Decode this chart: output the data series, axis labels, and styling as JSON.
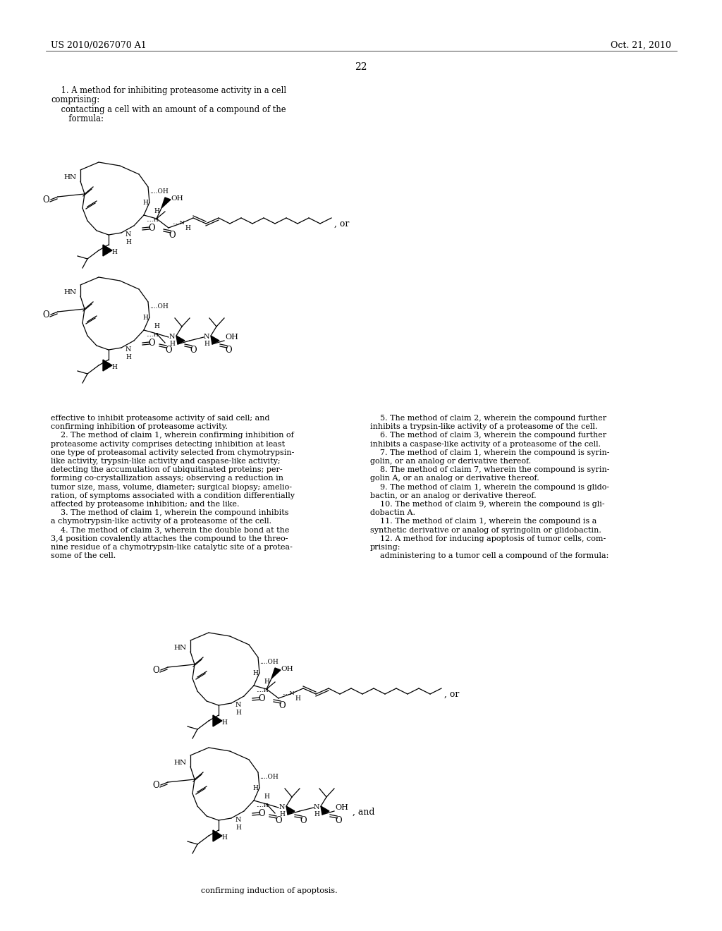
{
  "page_number": "22",
  "header_left": "US 2010/0267070 A1",
  "header_right": "Oct. 21, 2010",
  "background_color": "#ffffff",
  "text_color": "#000000",
  "claim1_lines": [
    "    1. A method for inhibiting proteasome activity in a cell",
    "comprising:",
    "    contacting a cell with an amount of a compound of the",
    "       formula:"
  ],
  "left_body_text": [
    "effective to inhibit proteasome activity of said cell; and",
    "confirming inhibition of proteasome activity.",
    "    2. The method of claim 1, wherein confirming inhibition of",
    "proteasome activity comprises detecting inhibition at least",
    "one type of proteasomal activity selected from chymotrypsin-",
    "like activity, trypsin-like activity and caspase-like activity;",
    "detecting the accumulation of ubiquitinated proteins; per-",
    "forming co-crystallization assays; observing a reduction in",
    "tumor size, mass, volume, diameter; surgical biopsy; amelio-",
    "ration, of symptoms associated with a condition differentially",
    "affected by proteasome inhibition; and the like.",
    "    3. The method of claim 1, wherein the compound inhibits",
    "a chymotrypsin-like activity of a proteasome of the cell.",
    "    4. The method of claim 3, wherein the double bond at the",
    "3,4 position covalently attaches the compound to the threo-",
    "nine residue of a chymotrypsin-like catalytic site of a protea-",
    "some of the cell."
  ],
  "right_body_text": [
    "    5. The method of claim 2, wherein the compound further",
    "inhibits a trypsin-like activity of a proteasome of the cell.",
    "    6. The method of claim 3, wherein the compound further",
    "inhibits a caspase-like activity of a proteasome of the cell.",
    "    7. The method of claim 1, wherein the compound is syrin-",
    "golin, or an analog or derivative thereof.",
    "    8. The method of claim 7, wherein the compound is syrin-",
    "golin A, or an analog or derivative thereof.",
    "    9. The method of claim 1, wherein the compound is glido-",
    "bactin, or an analog or derivative thereof.",
    "    10. The method of claim 9, wherein the compound is gli-",
    "dobactin A.",
    "    11. The method of claim 1, wherein the compound is a",
    "synthetic derivative or analog of syringolin or glidobactin.",
    "    12. A method for inducing apoptosis of tumor cells, com-",
    "prising:",
    "    administering to a tumor cell a compound of the formula:"
  ],
  "bottom_text": "confirming induction of apoptosis."
}
